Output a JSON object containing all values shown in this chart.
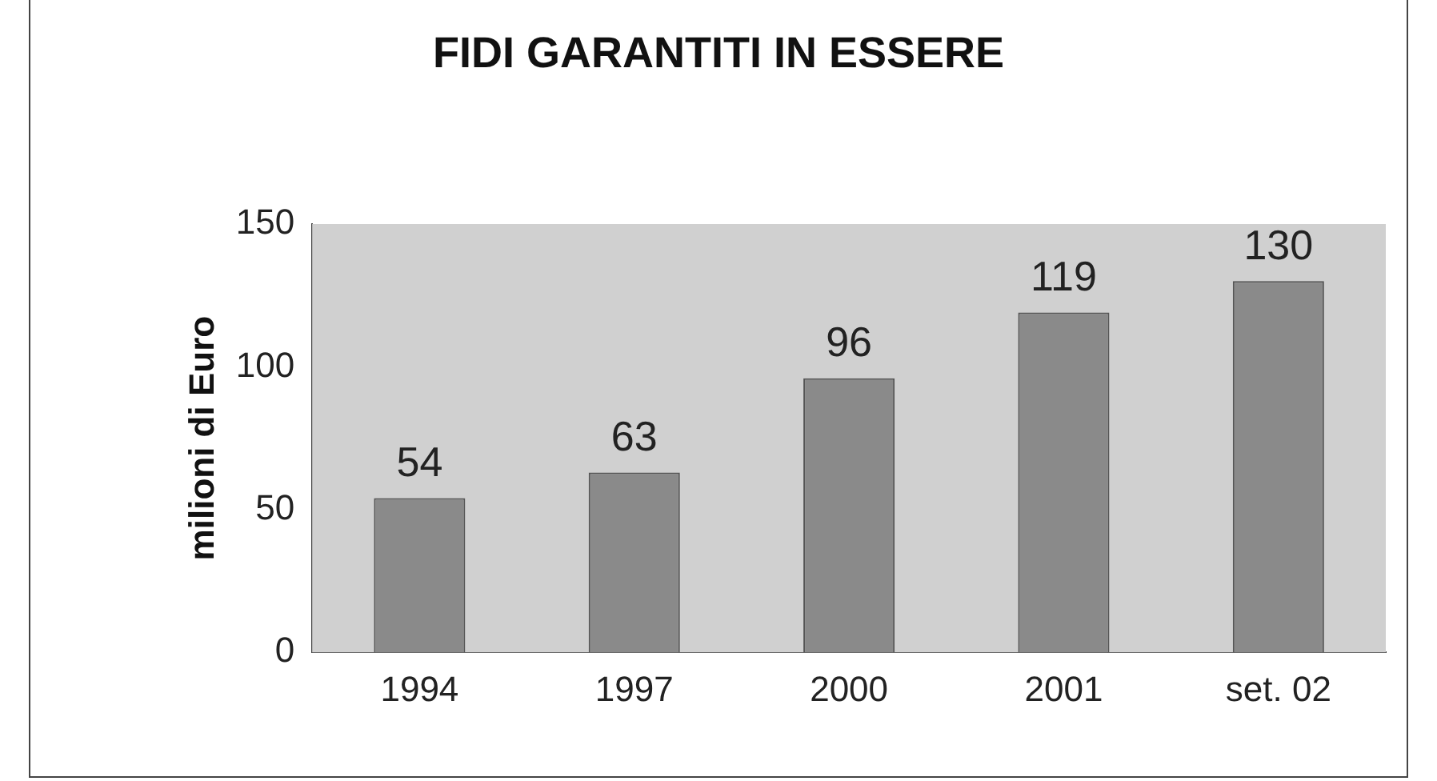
{
  "chart_data": {
    "type": "bar",
    "title": "FIDI  GARANTITI  IN  ESSERE",
    "ylabel": "milioni di Euro",
    "categories": [
      "1994",
      "1997",
      "2000",
      "2001",
      "set. 02"
    ],
    "values": [
      54,
      63,
      96,
      119,
      130
    ],
    "color": "#8a8a8a",
    "ylim": [
      0,
      150
    ],
    "yticks": [
      0,
      50,
      100,
      150
    ],
    "grid": false,
    "legend": false,
    "data_labels": true
  }
}
